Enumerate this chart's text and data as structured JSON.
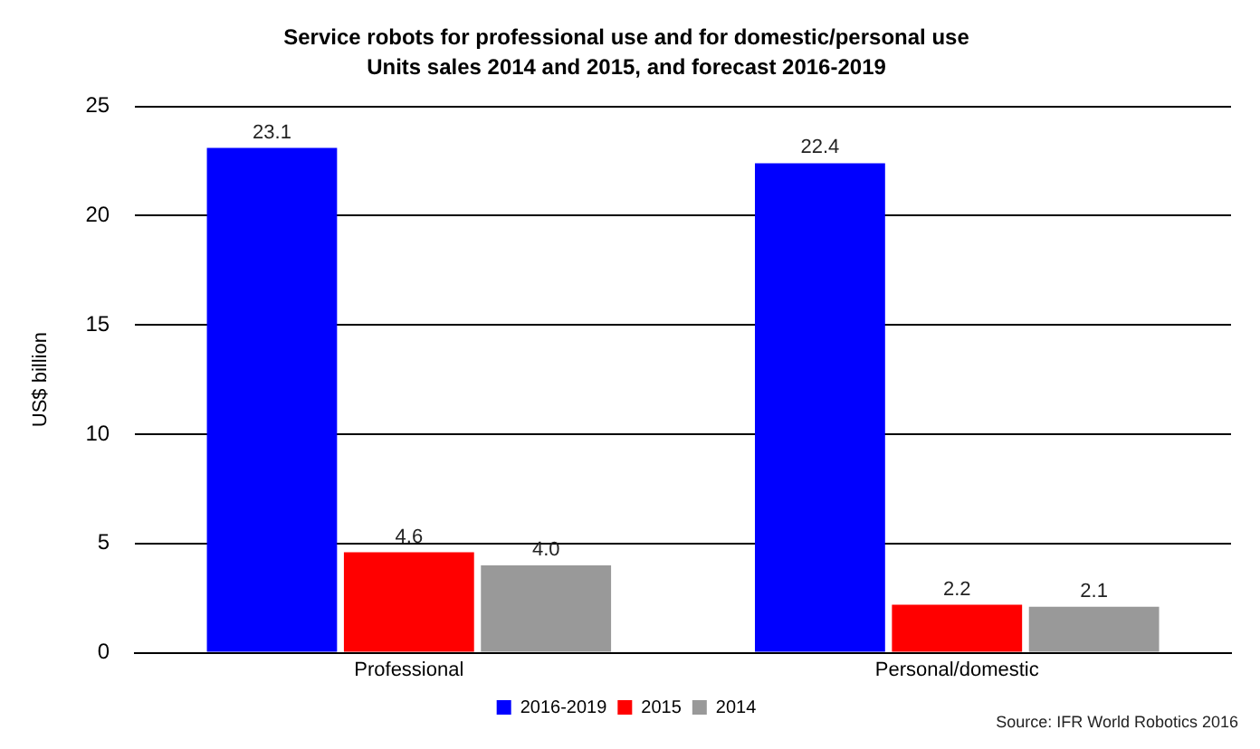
{
  "chart_data": {
    "type": "bar",
    "title": "Service robots for professional use and for domestic/personal use",
    "subtitle": "Units sales 2014 and 2015, and forecast 2016-2019",
    "ylabel": "US$ billion",
    "categories": [
      "Professional",
      "Personal/domestic"
    ],
    "series": [
      {
        "name": "2016-2019",
        "color": "#0000ff",
        "values": [
          23.1,
          22.4
        ],
        "value_labels": [
          "23.1",
          "22.4"
        ]
      },
      {
        "name": "2015",
        "color": "#ff0000",
        "values": [
          4.6,
          2.2
        ],
        "value_labels": [
          "4.6",
          "2.2"
        ]
      },
      {
        "name": "2014",
        "color": "#999999",
        "values": [
          4.0,
          2.1
        ],
        "value_labels": [
          "4.0",
          "2.1"
        ]
      }
    ],
    "ylim": [
      0,
      25
    ],
    "yticks": [
      0,
      5,
      10,
      15,
      20,
      25
    ],
    "grid": "y",
    "legend": "bottom",
    "annotations": [
      "Source: IFR World Robotics 2016"
    ]
  }
}
